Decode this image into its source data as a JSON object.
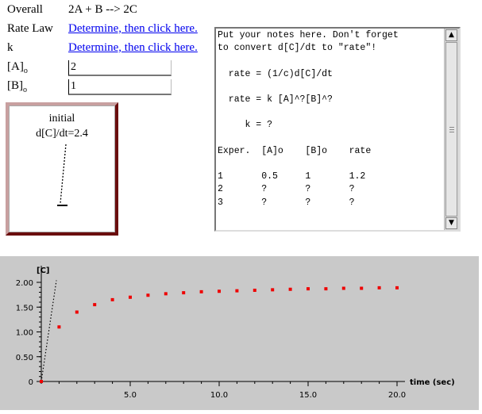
{
  "labels": {
    "overall": "Overall",
    "rate_law": "Rate Law",
    "k": "k",
    "a0": "[A]",
    "a0_sub": "o",
    "b0": "[B]",
    "b0_sub": "o"
  },
  "overall_reaction": "2A + B --> 2C",
  "links": {
    "rate_law": "Determine, then click here.",
    "k": "Determine, then click here."
  },
  "inputs": {
    "a0_value": "2",
    "b0_value": "1"
  },
  "rate_box": {
    "line1": "initial",
    "line2": "d[C]/dt=2.4",
    "initial_rate": 2.4
  },
  "notes": "Put your notes here. Don't forget\nto convert d[C]/dt to \"rate\"!\n\n  rate = (1/c)d[C]/dt\n\n  rate = k [A]^?[B]^?\n\n     k = ?\n\nExper.  [A]o    [B]o    rate\n\n1       0.5     1       1.2\n2       ?       ?       ?\n3       ?       ?       ?",
  "colors": {
    "link": "#0000ee",
    "graph_bg": "#c9c9c9",
    "point": "#ee0000",
    "box_dark": "#6a0e0e",
    "box_light": "#c8a0a0"
  },
  "icons": {
    "scroll_up": "triangle-up-icon",
    "scroll_down": "triangle-down-icon"
  },
  "chart_data": {
    "type": "scatter",
    "xlabel": "time (sec)",
    "ylabel": "[C]",
    "xlim": [
      0,
      20
    ],
    "ylim": [
      0,
      2.0
    ],
    "x_ticks": [
      "5.0",
      "10.0",
      "15.0",
      "20.0"
    ],
    "y_ticks": [
      "0",
      "0.50",
      "1.00",
      "1.50",
      "2.00"
    ],
    "x_tick_values": [
      5,
      10,
      15,
      20
    ],
    "y_tick_values": [
      0,
      0.5,
      1.0,
      1.5,
      2.0
    ],
    "series": [
      {
        "x": [
          0,
          1,
          2,
          3,
          4,
          5,
          6,
          7,
          8,
          9,
          10,
          11,
          12,
          13,
          14,
          15,
          16,
          17,
          18,
          19,
          20
        ],
        "y": [
          0,
          1.1,
          1.4,
          1.55,
          1.65,
          1.7,
          1.74,
          1.77,
          1.79,
          1.81,
          1.82,
          1.83,
          1.84,
          1.85,
          1.86,
          1.87,
          1.87,
          1.88,
          1.88,
          1.89,
          1.89
        ]
      }
    ],
    "tangent_slope": 2.4,
    "grid": false
  }
}
